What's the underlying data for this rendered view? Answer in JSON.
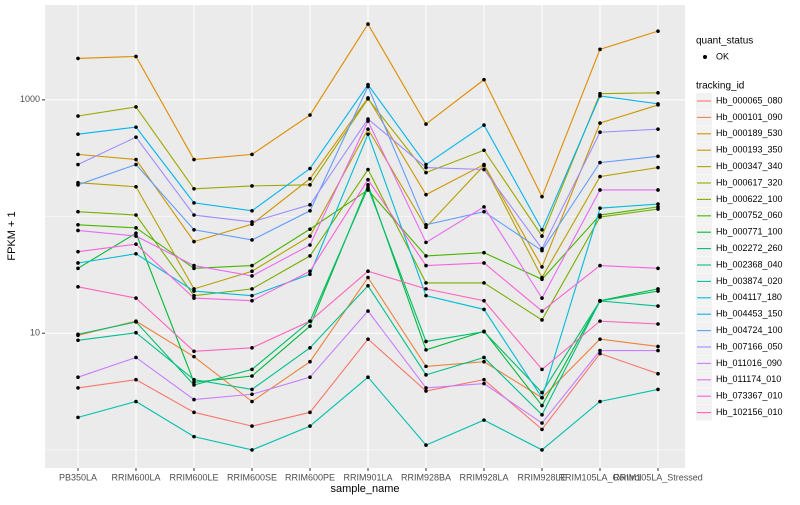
{
  "chart_data": {
    "type": "line",
    "x_label": "sample_name",
    "y_label": "FPKM + 1",
    "log_y": true,
    "grid": true,
    "categories": [
      "PB350LA",
      "RRIM600LA",
      "RRIM600LE",
      "RRIM600SE",
      "RRIM600PE",
      "RRIM901LA",
      "RRIM928BA",
      "RRIM928LA",
      "RRIM928LE",
      "RRIM105LA_Control",
      "RRIM105LA_Stressed"
    ],
    "ylim": [
      0.7,
      6500
    ],
    "yticks": [
      10,
      1000
    ],
    "point_legend_title": "quant_status",
    "point_legend_label": "OK",
    "point_color": "#000000",
    "legend_title": "tracking_id",
    "series": [
      {
        "name": "Hb_000065_080",
        "color": "#F8766D",
        "values": [
          3.4,
          4.0,
          2.1,
          1.6,
          2.1,
          8.9,
          3.2,
          4.0,
          1.5,
          6.7,
          4.5
        ]
      },
      {
        "name": "Hb_000101_090",
        "color": "#EC823C",
        "values": [
          9.6,
          12.7,
          6.3,
          2.6,
          5.7,
          30,
          5.2,
          5.7,
          2.8,
          8.9,
          7.7
        ]
      },
      {
        "name": "Hb_000189_530",
        "color": "#DE8C00",
        "values": [
          2265,
          2355,
          308,
          341,
          741,
          4460,
          620,
          1490,
          148,
          2710,
          3880
        ]
      },
      {
        "name": "Hb_000193_350",
        "color": "#CD9600",
        "values": [
          341,
          308,
          61,
          86,
          211,
          1040,
          154,
          279,
          37,
          632,
          905
        ]
      },
      {
        "name": "Hb_000347_340",
        "color": "#B79F00",
        "values": [
          195,
          180,
          24,
          34,
          68,
          561,
          81,
          274,
          30,
          220,
          263
        ]
      },
      {
        "name": "Hb_000617_320",
        "color": "#9DA700",
        "values": [
          727,
          870,
          173,
          183,
          187,
          1020,
          238,
          370,
          68,
          1130,
          1150
        ]
      },
      {
        "name": "Hb_000622_100",
        "color": "#7CAE00",
        "values": [
          110,
          103,
          21,
          24,
          46,
          253,
          27,
          27,
          13,
          99,
          116
        ]
      },
      {
        "name": "Hb_000752_060",
        "color": "#49B500",
        "values": [
          85,
          80,
          36,
          38,
          78,
          169,
          46,
          49,
          29,
          103,
          121
        ]
      },
      {
        "name": "Hb_000771_100",
        "color": "#00BA38",
        "values": [
          36,
          72,
          3.8,
          4.3,
          11.5,
          187,
          7.2,
          10.4,
          2.4,
          19,
          24
        ]
      },
      {
        "name": "Hb_002272_260",
        "color": "#00BE6C",
        "values": [
          9.8,
          12.5,
          3.6,
          4.9,
          12.7,
          177,
          8.5,
          10.3,
          3.1,
          18.9,
          23
        ]
      },
      {
        "name": "Hb_002368_040",
        "color": "#00C08B",
        "values": [
          8.7,
          10.1,
          4.0,
          3.3,
          7.5,
          25.5,
          4.4,
          6.2,
          2.0,
          18.9,
          17.1
        ]
      },
      {
        "name": "Hb_003874_020",
        "color": "#00C0AF",
        "values": [
          1.9,
          2.6,
          1.3,
          1.0,
          1.6,
          4.2,
          1.1,
          1.8,
          1.0,
          2.6,
          3.3
        ]
      },
      {
        "name": "Hb_004117_180",
        "color": "#00BCD8",
        "values": [
          40,
          48,
          23,
          21,
          32,
          508,
          21,
          16,
          2.8,
          118,
          128
        ]
      },
      {
        "name": "Hb_004453_150",
        "color": "#00B4F0",
        "values": [
          508,
          584,
          131,
          112,
          258,
          1350,
          279,
          608,
          77,
          1080,
          924
        ]
      },
      {
        "name": "Hb_004724_100",
        "color": "#619CFF",
        "values": [
          187,
          279,
          77,
          63,
          112,
          1300,
          85,
          110,
          51,
          290,
          328
        ]
      },
      {
        "name": "Hb_007166_050",
        "color": "#9F8CFF",
        "values": [
          279,
          479,
          103,
          90,
          126,
          685,
          263,
          253,
          53,
          528,
          561
        ]
      },
      {
        "name": "Hb_011016_090",
        "color": "#C77CFF",
        "values": [
          4.2,
          6.2,
          2.7,
          3.0,
          4.2,
          15.5,
          3.4,
          3.7,
          1.7,
          7.1,
          7.1
        ]
      },
      {
        "name": "Hb_011174_010",
        "color": "#E76BF3",
        "values": [
          76,
          68,
          38,
          31,
          57,
          658,
          60,
          121,
          20,
          169,
          169
        ]
      },
      {
        "name": "Hb_073367_010",
        "color": "#FA62DB",
        "values": [
          50,
          58,
          20,
          19,
          34,
          207,
          38,
          40,
          15.5,
          38,
          36
        ]
      },
      {
        "name": "Hb_102156_010",
        "color": "#FF62BC",
        "values": [
          25,
          20,
          7,
          7.5,
          12.7,
          34,
          24,
          19,
          4.9,
          12.7,
          12.0
        ]
      }
    ]
  }
}
